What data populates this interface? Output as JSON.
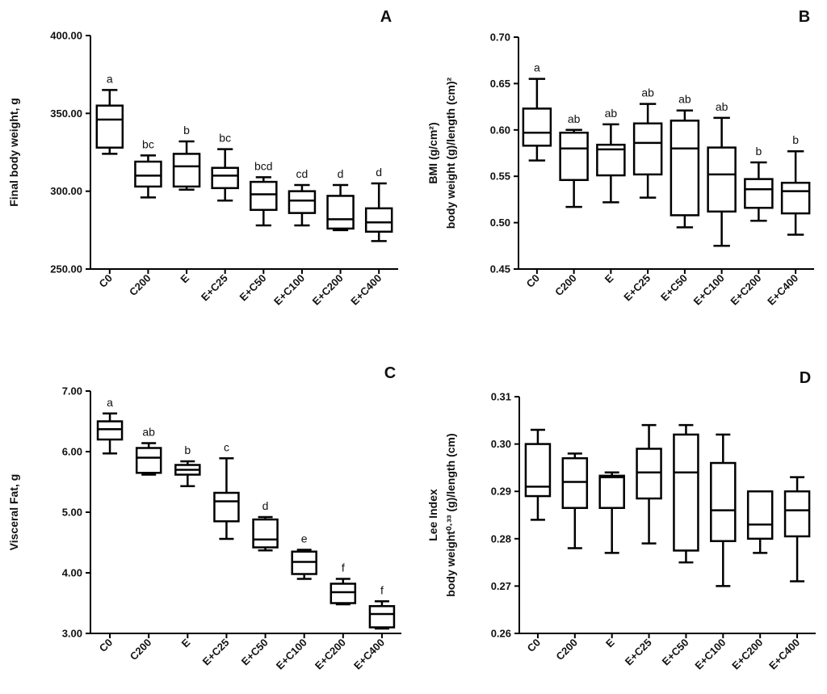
{
  "colors": {
    "stroke": "#000000",
    "background": "#ffffff"
  },
  "chart_data": [
    {
      "panel": "A",
      "type": "boxplot",
      "categories": [
        "C0",
        "C200",
        "E",
        "E+C25",
        "E+C50",
        "E+C100",
        "E+C200",
        "E+C400"
      ],
      "ylabel_lines": [
        "Final body weight, g"
      ],
      "ylim": [
        250,
        400
      ],
      "yticks": [
        250,
        300,
        350,
        400
      ],
      "ytick_labels": [
        "250.00",
        "300.00",
        "350.00",
        "400.00"
      ],
      "boxes": [
        {
          "min": 324,
          "q1": 328,
          "median": 346,
          "q3": 355,
          "max": 365,
          "label": "a"
        },
        {
          "min": 296,
          "q1": 303,
          "median": 310,
          "q3": 319,
          "max": 323,
          "label": "bc"
        },
        {
          "min": 301,
          "q1": 303,
          "median": 316,
          "q3": 324,
          "max": 332,
          "label": "b"
        },
        {
          "min": 294,
          "q1": 302,
          "median": 310,
          "q3": 315,
          "max": 327,
          "label": "bc"
        },
        {
          "min": 278,
          "q1": 288,
          "median": 298,
          "q3": 306,
          "max": 309,
          "label": "bcd"
        },
        {
          "min": 278,
          "q1": 286,
          "median": 294,
          "q3": 300,
          "max": 304,
          "label": "cd"
        },
        {
          "min": 275,
          "q1": 276,
          "median": 282,
          "q3": 297,
          "max": 304,
          "label": "d"
        },
        {
          "min": 268,
          "q1": 274,
          "median": 280,
          "q3": 289,
          "max": 305,
          "label": "d"
        }
      ]
    },
    {
      "panel": "B",
      "type": "boxplot",
      "categories": [
        "C0",
        "C200",
        "E",
        "E+C25",
        "E+C50",
        "E+C100",
        "E+C200",
        "E+C400"
      ],
      "ylabel_lines": [
        "BMI (g/cm²)",
        "body weight (g)/length (cm)²"
      ],
      "ylim": [
        0.45,
        0.7
      ],
      "yticks": [
        0.45,
        0.5,
        0.55,
        0.6,
        0.65,
        0.7
      ],
      "ytick_labels": [
        "0.45",
        "0.50",
        "0.55",
        "0.60",
        "0.65",
        "0.70"
      ],
      "boxes": [
        {
          "min": 0.567,
          "q1": 0.583,
          "median": 0.597,
          "q3": 0.623,
          "max": 0.655,
          "label": "a"
        },
        {
          "min": 0.517,
          "q1": 0.546,
          "median": 0.58,
          "q3": 0.597,
          "max": 0.6,
          "label": "ab"
        },
        {
          "min": 0.522,
          "q1": 0.551,
          "median": 0.579,
          "q3": 0.584,
          "max": 0.606,
          "label": "ab"
        },
        {
          "min": 0.527,
          "q1": 0.552,
          "median": 0.586,
          "q3": 0.607,
          "max": 0.628,
          "label": "ab"
        },
        {
          "min": 0.495,
          "q1": 0.508,
          "median": 0.58,
          "q3": 0.61,
          "max": 0.621,
          "label": "ab"
        },
        {
          "min": 0.475,
          "q1": 0.512,
          "median": 0.552,
          "q3": 0.581,
          "max": 0.613,
          "label": "ab"
        },
        {
          "min": 0.502,
          "q1": 0.516,
          "median": 0.536,
          "q3": 0.547,
          "max": 0.565,
          "label": "b"
        },
        {
          "min": 0.487,
          "q1": 0.51,
          "median": 0.534,
          "q3": 0.543,
          "max": 0.577,
          "label": "b"
        }
      ]
    },
    {
      "panel": "C",
      "type": "boxplot",
      "categories": [
        "C0",
        "C200",
        "E",
        "E+C25",
        "E+C50",
        "E+C100",
        "E+C200",
        "E+C400"
      ],
      "ylabel_lines": [
        "Visceral Fat, g"
      ],
      "ylim": [
        3.0,
        7.0
      ],
      "yticks": [
        3.0,
        4.0,
        5.0,
        6.0,
        7.0
      ],
      "ytick_labels": [
        "3.00",
        "4.00",
        "5.00",
        "6.00",
        "7.00"
      ],
      "boxes": [
        {
          "min": 5.97,
          "q1": 6.2,
          "median": 6.37,
          "q3": 6.5,
          "max": 6.63,
          "label": "a"
        },
        {
          "min": 5.62,
          "q1": 5.65,
          "median": 5.9,
          "q3": 6.06,
          "max": 6.14,
          "label": "ab"
        },
        {
          "min": 5.43,
          "q1": 5.62,
          "median": 5.7,
          "q3": 5.78,
          "max": 5.84,
          "label": "b"
        },
        {
          "min": 4.56,
          "q1": 4.85,
          "median": 5.18,
          "q3": 5.32,
          "max": 5.89,
          "label": "c"
        },
        {
          "min": 4.37,
          "q1": 4.42,
          "median": 4.55,
          "q3": 4.88,
          "max": 4.92,
          "label": "d"
        },
        {
          "min": 3.9,
          "q1": 3.98,
          "median": 4.18,
          "q3": 4.35,
          "max": 4.38,
          "label": "e"
        },
        {
          "min": 3.48,
          "q1": 3.5,
          "median": 3.68,
          "q3": 3.82,
          "max": 3.9,
          "label": "f"
        },
        {
          "min": 3.08,
          "q1": 3.1,
          "median": 3.32,
          "q3": 3.45,
          "max": 3.53,
          "label": "f"
        }
      ]
    },
    {
      "panel": "D",
      "type": "boxplot",
      "categories": [
        "C0",
        "C200",
        "E",
        "E+C25",
        "E+C50",
        "E+C100",
        "E+C200",
        "E+C400"
      ],
      "ylabel_lines": [
        "Lee Index",
        "body weight⁰·³³ (g)/length (cm)"
      ],
      "ylim": [
        0.26,
        0.31
      ],
      "yticks": [
        0.26,
        0.27,
        0.28,
        0.29,
        0.3,
        0.31
      ],
      "ytick_labels": [
        "0.26",
        "0.27",
        "0.28",
        "0.29",
        "0.30",
        "0.31"
      ],
      "boxes": [
        {
          "min": 0.284,
          "q1": 0.289,
          "median": 0.291,
          "q3": 0.3,
          "max": 0.303,
          "label": ""
        },
        {
          "min": 0.278,
          "q1": 0.2865,
          "median": 0.292,
          "q3": 0.297,
          "max": 0.298,
          "label": ""
        },
        {
          "min": 0.277,
          "q1": 0.2865,
          "median": 0.293,
          "q3": 0.2933,
          "max": 0.294,
          "label": ""
        },
        {
          "min": 0.279,
          "q1": 0.2885,
          "median": 0.294,
          "q3": 0.299,
          "max": 0.304,
          "label": ""
        },
        {
          "min": 0.275,
          "q1": 0.2775,
          "median": 0.294,
          "q3": 0.302,
          "max": 0.304,
          "label": ""
        },
        {
          "min": 0.27,
          "q1": 0.2795,
          "median": 0.286,
          "q3": 0.296,
          "max": 0.302,
          "label": ""
        },
        {
          "min": 0.277,
          "q1": 0.28,
          "median": 0.283,
          "q3": 0.29,
          "max": 0.29,
          "label": ""
        },
        {
          "min": 0.271,
          "q1": 0.2805,
          "median": 0.286,
          "q3": 0.29,
          "max": 0.293,
          "label": ""
        }
      ]
    }
  ]
}
